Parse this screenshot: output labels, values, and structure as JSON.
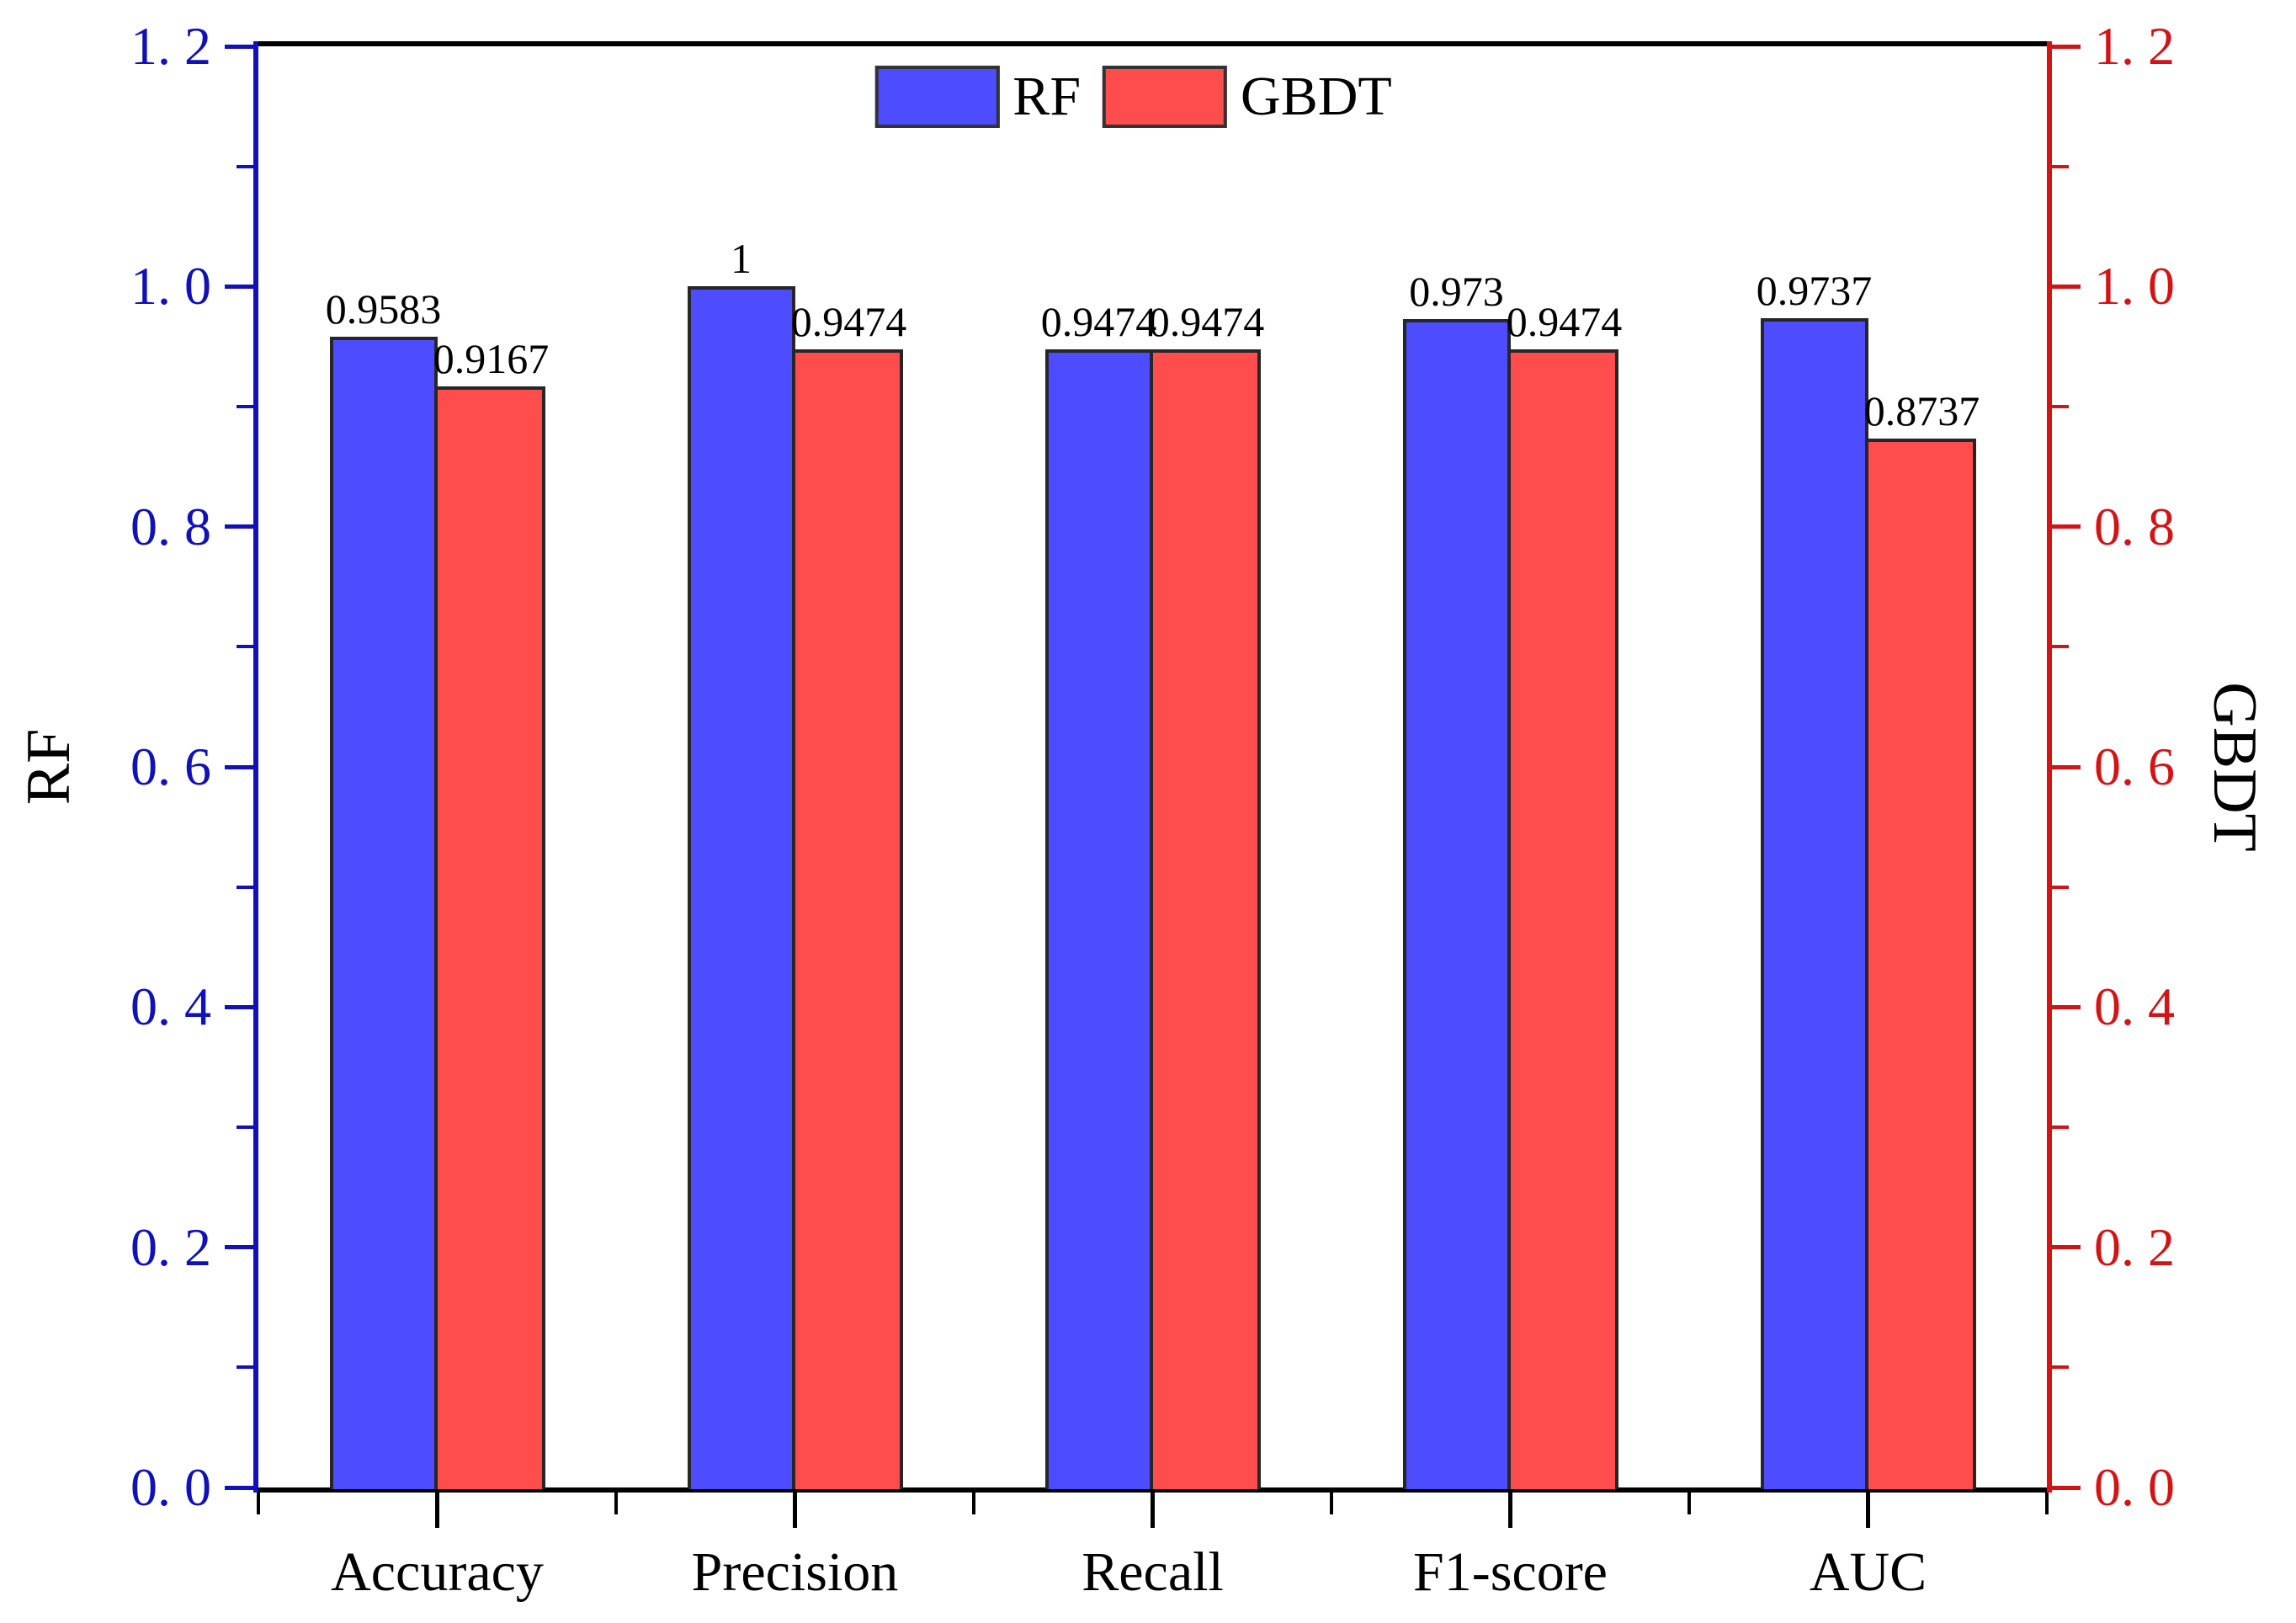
{
  "chart_data": {
    "type": "bar",
    "categories": [
      "Accuracy",
      "Precision",
      "Recall",
      "F1-score",
      "AUC"
    ],
    "series": [
      {
        "name": "RF",
        "color": "#4d4dff",
        "axis": "left",
        "values": [
          0.9583,
          1,
          0.9474,
          0.973,
          0.9737
        ],
        "value_labels": [
          "0.9583",
          "1",
          "0.9474",
          "0.973",
          "0.9737"
        ]
      },
      {
        "name": "GBDT",
        "color": "#ff4d4d",
        "axis": "right",
        "values": [
          0.9167,
          0.9474,
          0.9474,
          0.9474,
          0.8737
        ],
        "value_labels": [
          "0.9167",
          "0.9474",
          "0.9474",
          "0.9474",
          "0.8737"
        ]
      }
    ],
    "left_axis": {
      "title": "RF",
      "color": "#1111bb",
      "min": 0,
      "max": 1.2,
      "major_step": 0.2,
      "minor_step": 0.1,
      "tick_labels": [
        "0. 0",
        "0. 2",
        "0. 4",
        "0. 6",
        "0. 8",
        "1. 0",
        "1. 2"
      ]
    },
    "right_axis": {
      "title": "GBDT",
      "color": "#d41414",
      "min": 0,
      "max": 1.2,
      "major_step": 0.2,
      "minor_step": 0.1,
      "tick_labels": [
        "0. 0",
        "0. 2",
        "0. 4",
        "0. 6",
        "0. 8",
        "1. 0",
        "1. 2"
      ]
    },
    "x_axis": {
      "color": "#000000",
      "major_ticks_at": "category-centers",
      "minor_ticks_at": "category-boundaries"
    },
    "legend": {
      "position": "top-center",
      "items": [
        {
          "label": "RF",
          "color": "#4d4dff"
        },
        {
          "label": "GBDT",
          "color": "#ff4d4d"
        }
      ]
    },
    "bar_edge_color": "#262626",
    "grid": false,
    "title": "",
    "xlabel": "",
    "ylim": [
      0,
      1.2
    ]
  }
}
